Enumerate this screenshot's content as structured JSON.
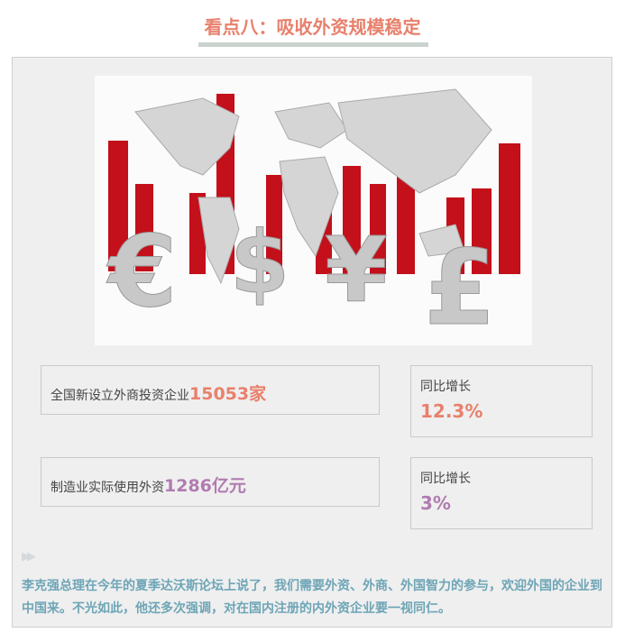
{
  "header": {
    "title": "看点八：吸收外资规模稳定"
  },
  "image": {
    "subject": "world-map-currency-bars",
    "bar_color": "#c3101a"
  },
  "stats": [
    {
      "label": "全国新设立外商投资企业",
      "value": "15053家",
      "growth_label": "同比增长",
      "growth": "12.3%",
      "color": "#e8806c"
    },
    {
      "label": "制造业实际使用外资",
      "value": "1286亿元",
      "growth_label": "同比增长",
      "growth": "3%",
      "color": "#b07cb0"
    }
  ],
  "paragraph": "李克强总理在今年的夏季达沃斯论坛上说了，我们需要外资、外商、外国智力的参与，欢迎外国的企业到中国来。不光如此，他还多次强调，对在国内注册的内外资企业要一视同仁。",
  "icons": {
    "bullet": "double-triangle-right-icon"
  }
}
